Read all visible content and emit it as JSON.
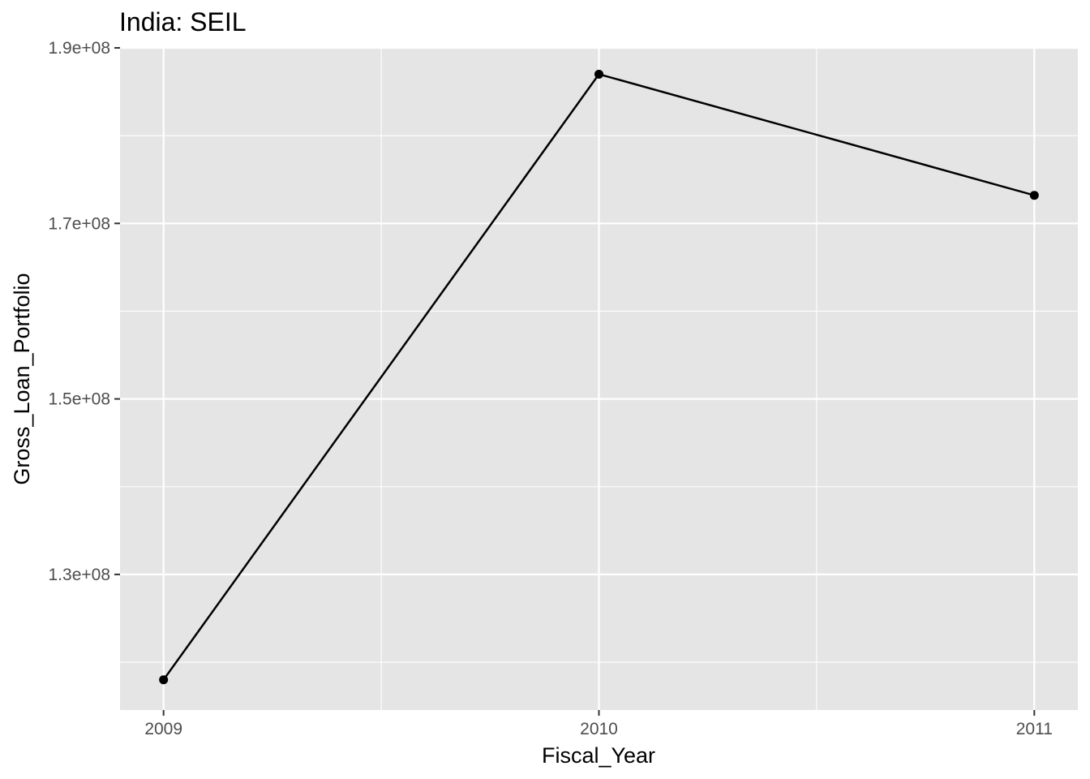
{
  "chart_data": {
    "type": "line",
    "title": "India:  SEIL",
    "xlabel": "Fiscal_Year",
    "ylabel": "Gross_Loan_Portfolio",
    "x": [
      2009,
      2010,
      2011
    ],
    "series": [
      {
        "values": [
          118000000,
          187000000,
          173200000
        ]
      }
    ],
    "x_ticks": [
      "2009",
      "2010",
      "2011"
    ],
    "y_ticks": [
      {
        "value": 130000000,
        "label": "1.3e+08"
      },
      {
        "value": 150000000,
        "label": "1.5e+08"
      },
      {
        "value": 170000000,
        "label": "1.7e+08"
      },
      {
        "value": 190000000,
        "label": "1.9e+08"
      }
    ],
    "xlim": [
      2008.9,
      2011.1
    ],
    "ylim": [
      114550000,
      190000000
    ],
    "grid": true,
    "colors": {
      "panel": "#e5e5e5",
      "grid": "#ffffff",
      "line": "#000000",
      "point": "#000000"
    }
  }
}
